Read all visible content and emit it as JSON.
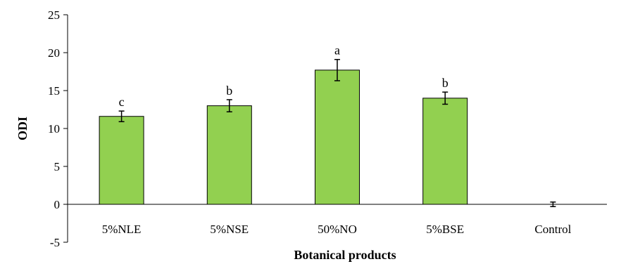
{
  "chart_data": {
    "type": "bar",
    "title": "",
    "xlabel": "Botanical products",
    "ylabel": "ODI",
    "ylim": [
      -5,
      25
    ],
    "yticks": [
      -5,
      0,
      5,
      10,
      15,
      20,
      25
    ],
    "ytick_labels": [
      "-5",
      "0",
      "5",
      "10",
      "15",
      "20",
      "25"
    ],
    "categories": [
      "5%NLE",
      "5%NSE",
      "50%NO",
      "5%BSE",
      "Control"
    ],
    "values": [
      11.6,
      13.0,
      17.7,
      14.0,
      0
    ],
    "errors": [
      0.7,
      0.8,
      1.4,
      0.8,
      0.3
    ],
    "significance": [
      "c",
      "b",
      "a",
      "b",
      ""
    ],
    "bar_color": "#92d050",
    "bar_edge_color": "#000000",
    "grid": false,
    "legend": "none"
  }
}
